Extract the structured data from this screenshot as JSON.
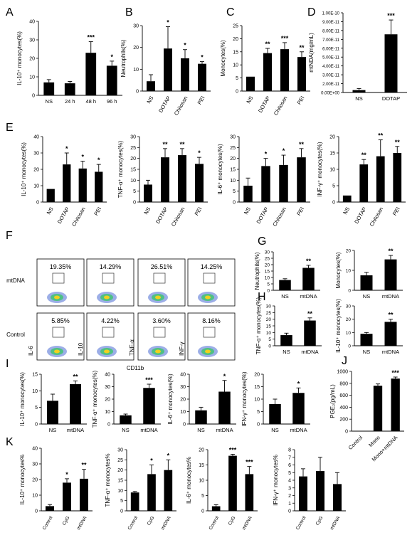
{
  "figure": {
    "flow": {
      "letter": "F",
      "rows": [
        "mtDNA",
        "Control"
      ],
      "percentages": [
        [
          "19.35%",
          "14.29%",
          "26.51%",
          "14.25%"
        ],
        [
          "5.85%",
          "4.22%",
          "3.60%",
          "8.16%"
        ]
      ],
      "marker_labels": [
        "IL-6",
        "IL-10",
        "TNF-α",
        "INF-γ"
      ],
      "x_axis": "CD11b"
    }
  },
  "chart_data": [
    {
      "id": "A",
      "letter": "A",
      "type": "bar",
      "categories": [
        "NS",
        "24 h",
        "48 h",
        "96 h"
      ],
      "values": [
        7,
        6.5,
        23,
        16
      ],
      "errors": [
        1.5,
        1,
        6,
        2.5
      ],
      "significance": [
        "",
        "",
        "***",
        "*"
      ],
      "ylabel": "IL-10⁺ monocytes(%)",
      "ylim": [
        0,
        40
      ],
      "yticks": [
        "0",
        "10",
        "20",
        "30",
        "40"
      ]
    },
    {
      "id": "B",
      "letter": "B",
      "type": "bar",
      "categories": [
        "NS",
        "DOTAP",
        "Chitosan",
        "PEI"
      ],
      "values": [
        4.5,
        19.5,
        15,
        12.5
      ],
      "errors": [
        3,
        10,
        4,
        1
      ],
      "significance": [
        "",
        "*",
        "*",
        "*"
      ],
      "ylabel": "Neutrophils(%)",
      "ylim": [
        0,
        30
      ],
      "yticks": [
        "0",
        "10",
        "20",
        "30"
      ]
    },
    {
      "id": "C",
      "letter": "C",
      "type": "bar",
      "categories": [
        "NS",
        "DOTAP",
        "Chitosan",
        "PEI"
      ],
      "values": [
        5.5,
        14.5,
        16,
        13
      ],
      "errors": [
        0,
        1.8,
        2.5,
        2
      ],
      "significance": [
        "",
        "**",
        "***",
        "**"
      ],
      "ylabel": "Monocytes(%)",
      "ylim": [
        0,
        25
      ],
      "yticks": [
        "0",
        "5",
        "10",
        "15",
        "20",
        "25"
      ]
    },
    {
      "id": "D",
      "letter": "D",
      "type": "bar",
      "categories": [
        "NS",
        "DOTAP"
      ],
      "values": [
        3e-12,
        7.3e-11
      ],
      "errors": [
        2e-12,
        1.8e-11
      ],
      "significance": [
        "",
        "***"
      ],
      "ylabel": "mtNDA(mg/mL)",
      "ylim": [
        0,
        1e-10
      ],
      "yticks": [
        "0.00E+00",
        "2.00E-11",
        "3.00E-11",
        "4.00E-11",
        "5.00E-11",
        "6.00E-11",
        "7.00E-11",
        "8.00E-11",
        "9.00E-11",
        "1.00E-10"
      ]
    },
    {
      "id": "E1",
      "letter": "E",
      "type": "bar",
      "categories": [
        "NS",
        "DOTAP",
        "Chitosan",
        "PEI"
      ],
      "values": [
        8,
        23,
        20.5,
        18.5
      ],
      "errors": [
        0,
        7,
        4.5,
        4.5
      ],
      "significance": [
        "",
        "*",
        "*",
        "*"
      ],
      "ylabel": "IL-10⁺ monocytes(%)",
      "ylim": [
        0,
        40
      ],
      "yticks": [
        "0",
        "10",
        "20",
        "30",
        "40"
      ]
    },
    {
      "id": "E2",
      "letter": "",
      "type": "bar",
      "categories": [
        "NS",
        "DOTAP",
        "Chitosan",
        "PEI"
      ],
      "values": [
        8,
        20.5,
        21.5,
        17.5
      ],
      "errors": [
        2,
        4,
        3,
        3
      ],
      "significance": [
        "",
        "**",
        "**",
        "*"
      ],
      "ylabel": "TNF-α⁺ monocytes(%)",
      "ylim": [
        0,
        30
      ],
      "yticks": [
        "0",
        "5",
        "10",
        "15",
        "20",
        "25",
        "30"
      ]
    },
    {
      "id": "E3",
      "letter": "",
      "type": "bar",
      "categories": [
        "NS",
        "DOTAP",
        "Chitosan",
        "PEI"
      ],
      "values": [
        7.5,
        16.5,
        17,
        20.5
      ],
      "errors": [
        3.5,
        3.5,
        4.5,
        4
      ],
      "significance": [
        "",
        "*",
        "*",
        "**"
      ],
      "ylabel": "IL-6⁺ monocytes(%)",
      "ylim": [
        0,
        30
      ],
      "yticks": [
        "0",
        "5",
        "10",
        "15",
        "20",
        "25",
        "30"
      ]
    },
    {
      "id": "E4",
      "letter": "",
      "type": "bar",
      "categories": [
        "NS",
        "DOTAP",
        "Chitosan",
        "PEI"
      ],
      "values": [
        2,
        11.5,
        14,
        15
      ],
      "errors": [
        0,
        1.5,
        5,
        2
      ],
      "significance": [
        "",
        "**",
        "**",
        "**"
      ],
      "ylabel": "INF-γ⁺ monocytes(%)",
      "ylim": [
        0,
        20
      ],
      "yticks": [
        "0",
        "5",
        "10",
        "15",
        "20"
      ]
    },
    {
      "id": "G1",
      "letter": "G",
      "type": "bar",
      "categories": [
        "NS",
        "mtDNA"
      ],
      "values": [
        8,
        17.5
      ],
      "errors": [
        1,
        2
      ],
      "significance": [
        "",
        "**"
      ],
      "ylabel": "Neutrophils(%)",
      "ylim": [
        0,
        30
      ],
      "yticks": [
        "0",
        "5",
        "10",
        "15",
        "20",
        "25",
        "30"
      ]
    },
    {
      "id": "G2",
      "letter": "",
      "type": "bar",
      "categories": [
        "NS",
        "mtDNA"
      ],
      "values": [
        7.5,
        15.5
      ],
      "errors": [
        1.5,
        2
      ],
      "significance": [
        "",
        "**"
      ],
      "ylabel": "Monocytes(%)",
      "ylim": [
        0,
        20
      ],
      "yticks": [
        "0",
        "10",
        "20"
      ]
    },
    {
      "id": "H1",
      "letter": "H",
      "type": "bar",
      "categories": [
        "NS",
        "mtDNA"
      ],
      "values": [
        8,
        19
      ],
      "errors": [
        1.5,
        2
      ],
      "significance": [
        "",
        "**"
      ],
      "ylabel": "TNF-α⁺ monocytes(%)",
      "ylim": [
        0,
        30
      ],
      "yticks": [
        "0",
        "5",
        "10",
        "15",
        "20",
        "25",
        "30"
      ]
    },
    {
      "id": "H2",
      "letter": "",
      "type": "bar",
      "categories": [
        "NS",
        "mtDNA"
      ],
      "values": [
        9,
        18
      ],
      "errors": [
        1,
        2
      ],
      "significance": [
        "",
        "**"
      ],
      "ylabel": "IL-10⁺ monocytes(%)",
      "ylim": [
        0,
        30
      ],
      "yticks": [
        "0",
        "10",
        "20",
        "30"
      ]
    },
    {
      "id": "I1",
      "letter": "I",
      "type": "bar",
      "categories": [
        "NS",
        "mtDNA"
      ],
      "values": [
        7,
        12
      ],
      "errors": [
        2,
        1
      ],
      "significance": [
        "",
        "**"
      ],
      "ylabel": "IL-10⁺ monocytes(%)",
      "ylim": [
        0,
        15
      ],
      "yticks": [
        "0",
        "5",
        "10",
        "15"
      ]
    },
    {
      "id": "I2",
      "letter": "",
      "type": "bar",
      "categories": [
        "NS",
        "mtDNA"
      ],
      "values": [
        7,
        29
      ],
      "errors": [
        1,
        3
      ],
      "significance": [
        "",
        "***"
      ],
      "ylabel": "TNF-α⁺ monocytes(%)",
      "ylim": [
        0,
        40
      ],
      "yticks": [
        "0",
        "10",
        "20",
        "30",
        "40"
      ]
    },
    {
      "id": "I3",
      "letter": "",
      "type": "bar",
      "categories": [
        "NS",
        "mtDNA"
      ],
      "values": [
        11,
        26
      ],
      "errors": [
        2.5,
        9
      ],
      "significance": [
        "",
        "*"
      ],
      "ylabel": "IL-6⁺ monocytes(%)",
      "ylim": [
        0,
        40
      ],
      "yticks": [
        "0",
        "10",
        "20",
        "30",
        "40"
      ]
    },
    {
      "id": "I4",
      "letter": "",
      "type": "bar",
      "categories": [
        "NS",
        "mtDNA"
      ],
      "values": [
        8,
        12.5
      ],
      "errors": [
        2,
        2
      ],
      "significance": [
        "",
        "*"
      ],
      "ylabel": "IFN-γ⁺ monocytes(%)",
      "ylim": [
        0,
        20
      ],
      "yticks": [
        "0",
        "5",
        "10",
        "15",
        "20"
      ]
    },
    {
      "id": "J",
      "letter": "J",
      "type": "bar",
      "categories": [
        "Control",
        "Mono",
        "Mono+mtDNA"
      ],
      "values": [
        5,
        760,
        880
      ],
      "errors": [
        0,
        30,
        25
      ],
      "significance": [
        "",
        "",
        "***"
      ],
      "ylabel": "PGE₂(pg/mL)",
      "ylim": [
        0,
        1000
      ],
      "yticks": [
        "0",
        "200",
        "400",
        "600",
        "800",
        "1000"
      ]
    },
    {
      "id": "K1",
      "letter": "K",
      "type": "bar",
      "categories": [
        "Control",
        "CpG",
        "mtDNA"
      ],
      "values": [
        3,
        18,
        20.5
      ],
      "errors": [
        1,
        2.5,
        6
      ],
      "significance": [
        "",
        "*",
        "**"
      ],
      "ylabel": "IL-10⁺ monocytes%",
      "ylim": [
        0,
        40
      ],
      "yticks": [
        "0",
        "10",
        "20",
        "30",
        "40"
      ]
    },
    {
      "id": "K2",
      "letter": "",
      "type": "bar",
      "categories": [
        "Control",
        "CpG",
        "mtDNA"
      ],
      "values": [
        9,
        18,
        20
      ],
      "errors": [
        0.5,
        4.5,
        5
      ],
      "significance": [
        "",
        "*",
        "*"
      ],
      "ylabel": "TNF-α⁺ monocytes%",
      "ylim": [
        0,
        30
      ],
      "yticks": [
        "0",
        "5",
        "10",
        "15",
        "20",
        "25",
        "30"
      ]
    },
    {
      "id": "K3",
      "letter": "",
      "type": "bar",
      "categories": [
        "Control",
        "CpG",
        "mtDNA"
      ],
      "values": [
        1.5,
        18,
        12
      ],
      "errors": [
        0.5,
        0.5,
        2.5
      ],
      "significance": [
        "",
        "***",
        "***"
      ],
      "ylabel": "IL-6⁺ monocytes%",
      "ylim": [
        0,
        20
      ],
      "yticks": [
        "0",
        "5",
        "10",
        "15",
        "20"
      ]
    },
    {
      "id": "K4",
      "letter": "",
      "type": "bar",
      "categories": [
        "Control",
        "CpG",
        "mtDNA"
      ],
      "values": [
        4.5,
        5.2,
        3.5
      ],
      "errors": [
        1,
        1.8,
        1.5
      ],
      "significance": [
        "",
        "",
        ""
      ],
      "ylabel": "IFN-γ⁺ monocytes%",
      "ylim": [
        0,
        8
      ],
      "yticks": [
        "0",
        "1",
        "2",
        "3",
        "4",
        "5",
        "6",
        "7",
        "8"
      ]
    }
  ]
}
